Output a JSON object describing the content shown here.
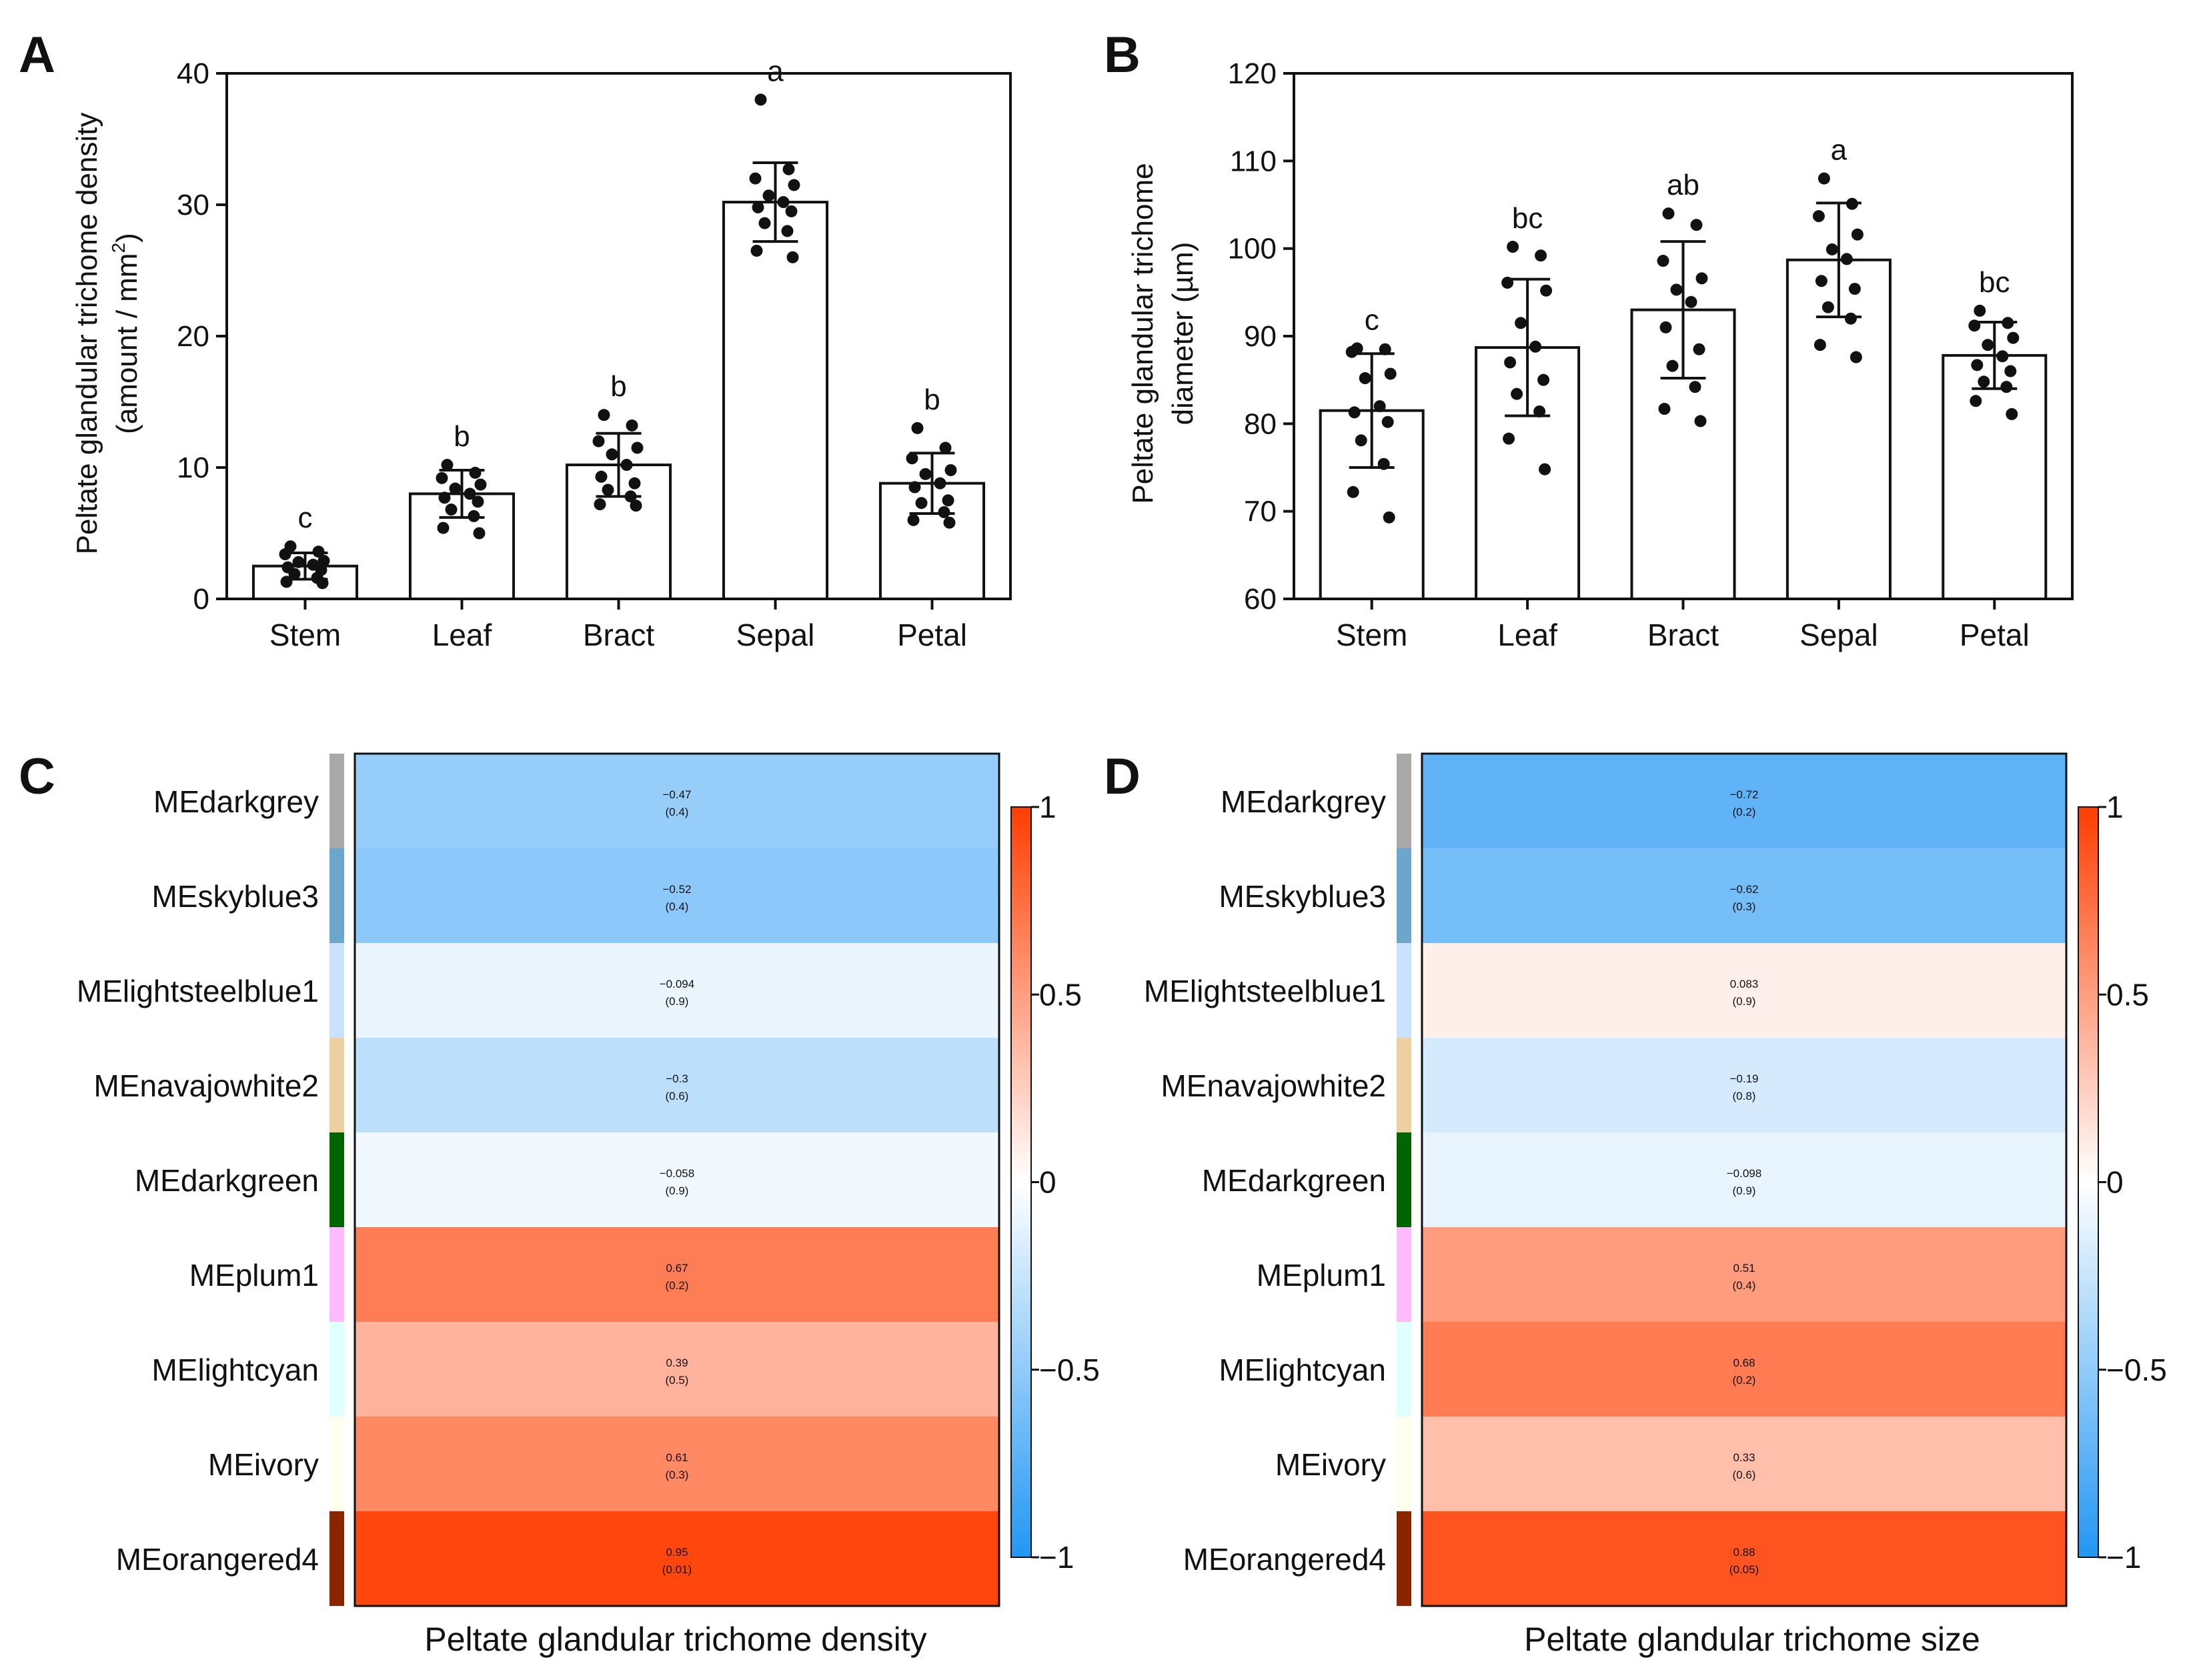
{
  "panels": {
    "A": "A",
    "B": "B",
    "C": "C",
    "D": "D"
  },
  "chart_data": [
    {
      "id": "A",
      "type": "bar",
      "ylabel_line1": "Peltate glandular trichome density",
      "ylabel_line2_prefix": "(amount / mm",
      "ylabel_line2_sup": "2",
      "ylabel_line2_suffix": ")",
      "ylim": [
        0,
        40
      ],
      "yticks": [
        0,
        10,
        20,
        30,
        40
      ],
      "categories": [
        "Stem",
        "Leaf",
        "Bract",
        "Sepal",
        "Petal"
      ],
      "values": [
        2.5,
        8.0,
        10.2,
        30.2,
        8.8
      ],
      "sd": [
        1.0,
        1.8,
        2.4,
        3.0,
        2.3
      ],
      "letters": [
        "c",
        "b",
        "b",
        "a",
        "b"
      ],
      "points": [
        [
          4.0,
          3.6,
          3.4,
          2.9,
          2.8,
          2.6,
          2.4,
          2.2,
          1.9,
          1.6,
          1.3,
          1.2
        ],
        [
          10.2,
          9.6,
          9.2,
          8.7,
          8.4,
          8.0,
          7.7,
          7.4,
          6.8,
          6.3,
          5.4,
          5.0
        ],
        [
          14.0,
          13.2,
          12.0,
          11.5,
          11.0,
          10.2,
          9.3,
          8.8,
          8.3,
          7.8,
          7.2,
          7.1
        ],
        [
          38.0,
          32.7,
          32.0,
          31.5,
          30.7,
          30.2,
          29.8,
          29.5,
          28.6,
          28.0,
          26.5,
          26.0
        ],
        [
          13.0,
          11.5,
          10.7,
          9.8,
          9.5,
          8.8,
          8.5,
          7.5,
          7.3,
          6.6,
          6.0,
          5.8
        ]
      ]
    },
    {
      "id": "B",
      "type": "bar",
      "ylabel_line1": "Peltate glandular trichome",
      "ylabel_line2": "diameter (µm)",
      "ylim": [
        60,
        120
      ],
      "yticks": [
        60,
        70,
        80,
        90,
        100,
        110,
        120
      ],
      "categories": [
        "Stem",
        "Leaf",
        "Bract",
        "Sepal",
        "Petal"
      ],
      "values": [
        81.5,
        88.7,
        93.0,
        98.7,
        87.8
      ],
      "sd": [
        6.5,
        7.8,
        7.8,
        6.5,
        3.8
      ],
      "letters": [
        "c",
        "bc",
        "ab",
        "a",
        "bc"
      ],
      "points": [
        [
          88.6,
          88.5,
          88.2,
          85.7,
          85.2,
          82.0,
          81.3,
          80.2,
          78.1,
          75.4,
          72.2,
          69.3
        ],
        [
          100.2,
          99.2,
          96.1,
          95.2,
          91.5,
          88.8,
          87.0,
          85.0,
          83.4,
          81.4,
          78.3,
          74.8
        ],
        [
          104.0,
          102.7,
          98.6,
          96.6,
          95.3,
          93.9,
          91.0,
          88.5,
          86.6,
          84.2,
          81.7,
          80.3
        ],
        [
          108.0,
          105.1,
          103.7,
          101.6,
          99.9,
          98.8,
          96.3,
          95.4,
          93.3,
          92.0,
          89.0,
          87.6
        ],
        [
          92.9,
          91.5,
          91.2,
          89.8,
          89.0,
          87.7,
          86.7,
          86.0,
          84.8,
          84.2,
          82.6,
          81.1
        ]
      ]
    },
    {
      "id": "C",
      "type": "heatmap",
      "xlabel": "Peltate glandular trichome density",
      "colorbar_ticks": [
        "1",
        "0.5",
        "0",
        "−0.5",
        "−1"
      ],
      "colorbar_values": [
        1,
        0.5,
        0,
        -0.5,
        -1
      ],
      "modules": [
        {
          "name": "MEdarkgrey",
          "swatch": "#a9a9a9",
          "r": -0.47,
          "r_text": "−0.47",
          "p_text": "(0.4)"
        },
        {
          "name": "MEskyblue3",
          "swatch": "#6ca6cd",
          "r": -0.52,
          "r_text": "−0.52",
          "p_text": "(0.4)"
        },
        {
          "name": "MElightsteelblue1",
          "swatch": "#cae1ff",
          "r": -0.094,
          "r_text": "−0.094",
          "p_text": "(0.9)"
        },
        {
          "name": "MEnavajowhite2",
          "swatch": "#eecfa1",
          "r": -0.3,
          "r_text": "−0.3",
          "p_text": "(0.6)"
        },
        {
          "name": "MEdarkgreen",
          "swatch": "#006400",
          "r": -0.058,
          "r_text": "−0.058",
          "p_text": "(0.9)"
        },
        {
          "name": "MEplum1",
          "swatch": "#ffbbff",
          "r": 0.67,
          "r_text": "0.67",
          "p_text": "(0.2)"
        },
        {
          "name": "MElightcyan",
          "swatch": "#e0ffff",
          "r": 0.39,
          "r_text": "0.39",
          "p_text": "(0.5)"
        },
        {
          "name": "MEivory",
          "swatch": "#fffff0",
          "r": 0.61,
          "r_text": "0.61",
          "p_text": "(0.3)"
        },
        {
          "name": "MEorangered4",
          "swatch": "#8b2500",
          "r": 0.95,
          "r_text": "0.95",
          "p_text": "(0.01)"
        }
      ]
    },
    {
      "id": "D",
      "type": "heatmap",
      "xlabel": "Peltate glandular trichome size",
      "colorbar_ticks": [
        "1",
        "0.5",
        "0",
        "−0.5",
        "−1"
      ],
      "colorbar_values": [
        1,
        0.5,
        0,
        -0.5,
        -1
      ],
      "modules": [
        {
          "name": "MEdarkgrey",
          "swatch": "#a9a9a9",
          "r": -0.72,
          "r_text": "−0.72",
          "p_text": "(0.2)"
        },
        {
          "name": "MEskyblue3",
          "swatch": "#6ca6cd",
          "r": -0.62,
          "r_text": "−0.62",
          "p_text": "(0.3)"
        },
        {
          "name": "MElightsteelblue1",
          "swatch": "#cae1ff",
          "r": 0.083,
          "r_text": "0.083",
          "p_text": "(0.9)"
        },
        {
          "name": "MEnavajowhite2",
          "swatch": "#eecfa1",
          "r": -0.19,
          "r_text": "−0.19",
          "p_text": "(0.8)"
        },
        {
          "name": "MEdarkgreen",
          "swatch": "#006400",
          "r": -0.098,
          "r_text": "−0.098",
          "p_text": "(0.9)"
        },
        {
          "name": "MEplum1",
          "swatch": "#ffbbff",
          "r": 0.51,
          "r_text": "0.51",
          "p_text": "(0.4)"
        },
        {
          "name": "MElightcyan",
          "swatch": "#e0ffff",
          "r": 0.68,
          "r_text": "0.68",
          "p_text": "(0.2)"
        },
        {
          "name": "MEivory",
          "swatch": "#fffff0",
          "r": 0.33,
          "r_text": "0.33",
          "p_text": "(0.6)"
        },
        {
          "name": "MEorangered4",
          "swatch": "#8b2500",
          "r": 0.88,
          "r_text": "0.88",
          "p_text": "(0.05)"
        }
      ]
    }
  ],
  "colors": {
    "negative": "#2196f3",
    "neutral": "#ffffff",
    "positive": "#ff3d00",
    "ink": "#111111"
  }
}
